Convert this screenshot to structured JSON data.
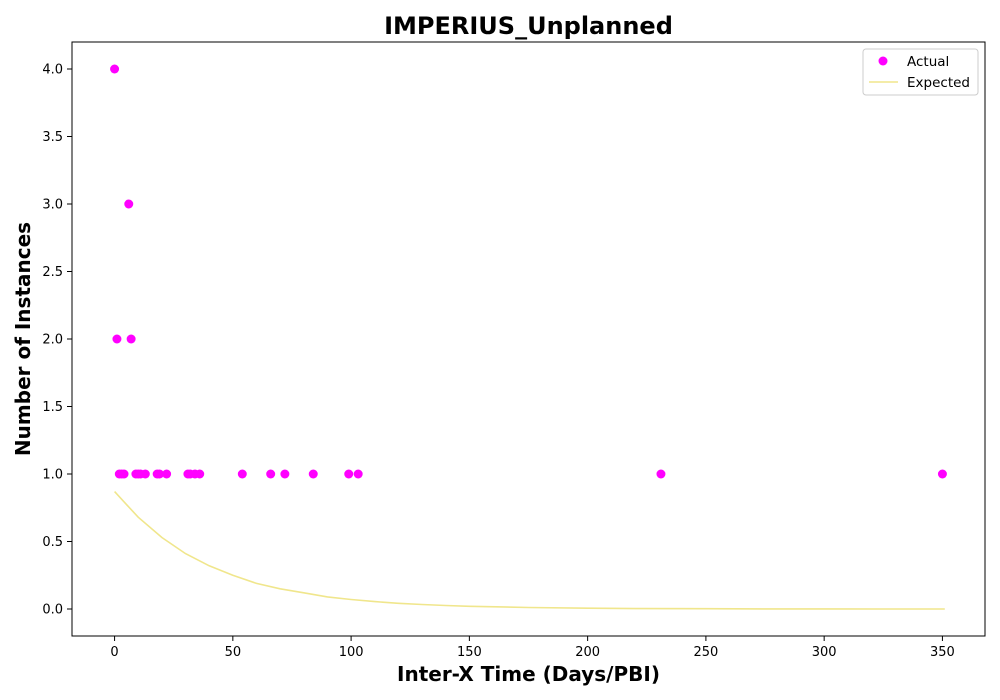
{
  "chart_data": {
    "type": "scatter",
    "title": "IMPERIUS_Unplanned",
    "xlabel": "Inter-X Time (Days/PBI)",
    "ylabel": "Number of Instances",
    "xlim": [
      -18,
      368
    ],
    "ylim": [
      -0.2,
      4.2
    ],
    "x_ticks": [
      0,
      50,
      100,
      150,
      200,
      250,
      300,
      350
    ],
    "y_ticks": [
      0.0,
      0.5,
      1.0,
      1.5,
      2.0,
      2.5,
      3.0,
      3.5,
      4.0
    ],
    "grid": false,
    "legend_position": "top-right",
    "series": [
      {
        "name": "Actual",
        "kind": "scatter",
        "color": "#ff00ff",
        "points": [
          {
            "x": 0,
            "y": 4
          },
          {
            "x": 1,
            "y": 2
          },
          {
            "x": 2,
            "y": 1
          },
          {
            "x": 3,
            "y": 1
          },
          {
            "x": 4,
            "y": 1
          },
          {
            "x": 6,
            "y": 3
          },
          {
            "x": 7,
            "y": 2
          },
          {
            "x": 9,
            "y": 1
          },
          {
            "x": 10,
            "y": 1
          },
          {
            "x": 11,
            "y": 1
          },
          {
            "x": 13,
            "y": 1
          },
          {
            "x": 18,
            "y": 1
          },
          {
            "x": 19,
            "y": 1
          },
          {
            "x": 22,
            "y": 1
          },
          {
            "x": 31,
            "y": 1
          },
          {
            "x": 32,
            "y": 1
          },
          {
            "x": 34,
            "y": 1
          },
          {
            "x": 36,
            "y": 1
          },
          {
            "x": 54,
            "y": 1
          },
          {
            "x": 66,
            "y": 1
          },
          {
            "x": 72,
            "y": 1
          },
          {
            "x": 84,
            "y": 1
          },
          {
            "x": 99,
            "y": 1
          },
          {
            "x": 103,
            "y": 1
          },
          {
            "x": 231,
            "y": 1
          },
          {
            "x": 350,
            "y": 1
          }
        ]
      },
      {
        "name": "Expected",
        "kind": "line",
        "color": "#f0e68c",
        "points": [
          {
            "x": 0,
            "y": 0.87
          },
          {
            "x": 10,
            "y": 0.68
          },
          {
            "x": 20,
            "y": 0.53
          },
          {
            "x": 30,
            "y": 0.41
          },
          {
            "x": 40,
            "y": 0.32
          },
          {
            "x": 50,
            "y": 0.25
          },
          {
            "x": 60,
            "y": 0.19
          },
          {
            "x": 70,
            "y": 0.15
          },
          {
            "x": 80,
            "y": 0.12
          },
          {
            "x": 90,
            "y": 0.09
          },
          {
            "x": 100,
            "y": 0.07
          },
          {
            "x": 110,
            "y": 0.055
          },
          {
            "x": 120,
            "y": 0.042
          },
          {
            "x": 130,
            "y": 0.033
          },
          {
            "x": 140,
            "y": 0.026
          },
          {
            "x": 150,
            "y": 0.02
          },
          {
            "x": 175,
            "y": 0.011
          },
          {
            "x": 200,
            "y": 0.006
          },
          {
            "x": 225,
            "y": 0.003
          },
          {
            "x": 250,
            "y": 0.002
          },
          {
            "x": 275,
            "y": 0.001
          },
          {
            "x": 300,
            "y": 0.0005
          },
          {
            "x": 325,
            "y": 0.0003
          },
          {
            "x": 351,
            "y": 0.0001
          }
        ]
      }
    ]
  }
}
